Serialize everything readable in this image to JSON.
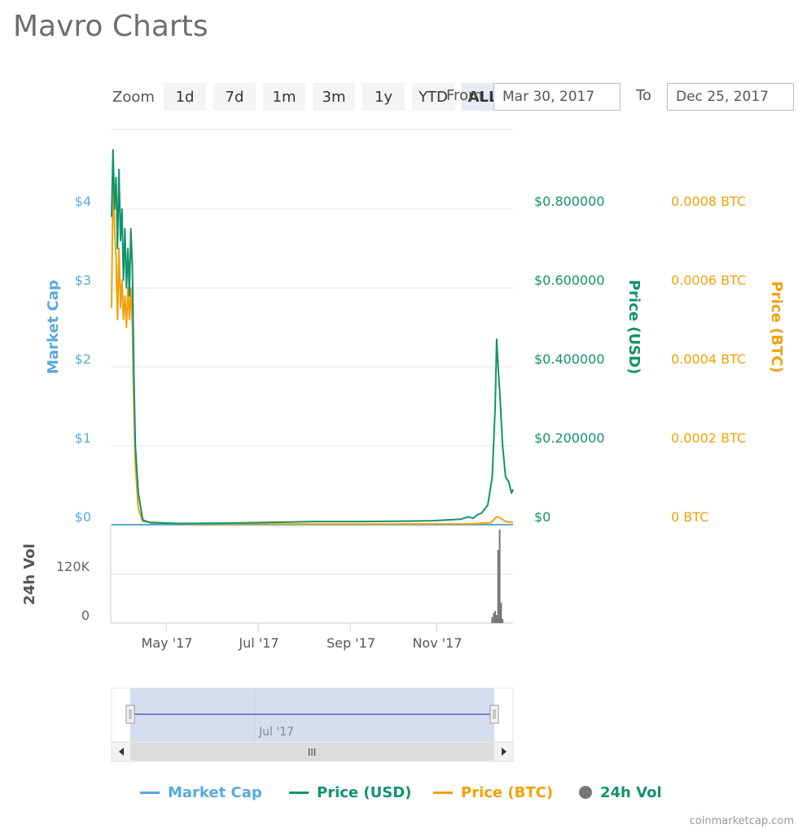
{
  "page": {
    "title": "Mavro Charts",
    "credit": "coinmarketcap.com"
  },
  "zoom": {
    "label": "Zoom",
    "buttons": [
      "1d",
      "7d",
      "1m",
      "3m",
      "1y",
      "YTD",
      "ALL"
    ],
    "active": "ALL"
  },
  "range": {
    "from_label": "From",
    "from_value": "Mar 30, 2017",
    "to_label": "To",
    "to_value": "Dec 25, 2017"
  },
  "colors": {
    "market_cap": "#5aaad8",
    "price_usd": "#12936b",
    "price_btc": "#f0a10a",
    "volume": "#777777",
    "grid": "#e6e6e6",
    "navigator_mask": "#c8d2ea"
  },
  "chart_data": {
    "type": "line",
    "x_range": [
      "2017-03-30",
      "2017-12-25"
    ],
    "x_ticks": [
      "May '17",
      "Jul '17",
      "Sep '17",
      "Nov '17"
    ],
    "y_axes": {
      "market_cap": {
        "label": "Market Cap",
        "ticks": [
          "$0",
          "$1",
          "$2",
          "$3",
          "$4"
        ],
        "range": [
          0,
          4
        ]
      },
      "price_usd": {
        "label": "Price (USD)",
        "ticks": [
          "$0",
          "$0.200000",
          "$0.400000",
          "$0.600000",
          "$0.800000"
        ],
        "range": [
          0,
          0.8
        ]
      },
      "price_btc": {
        "label": "Price (BTC)",
        "ticks": [
          "0 BTC",
          "0.0002 BTC",
          "0.0004 BTC",
          "0.0006 BTC",
          "0.0008 BTC"
        ],
        "range": [
          0,
          0.0008
        ]
      },
      "volume": {
        "label": "24h Vol",
        "ticks": [
          "0",
          "120K"
        ],
        "range": [
          0,
          240000
        ]
      }
    },
    "series": [
      {
        "name": "Market Cap",
        "key": "market_cap",
        "points": [
          [
            "2017-03-30",
            0
          ],
          [
            "2017-12-25",
            0
          ]
        ]
      },
      {
        "name": "Price (USD)",
        "key": "price_usd",
        "points": [
          [
            "2017-03-30",
            0.78
          ],
          [
            "2017-03-31",
            0.95
          ],
          [
            "2017-04-01",
            0.8
          ],
          [
            "2017-04-02",
            0.88
          ],
          [
            "2017-04-03",
            0.7
          ],
          [
            "2017-04-04",
            0.9
          ],
          [
            "2017-04-05",
            0.72
          ],
          [
            "2017-04-06",
            0.8
          ],
          [
            "2017-04-07",
            0.62
          ],
          [
            "2017-04-08",
            0.75
          ],
          [
            "2017-04-09",
            0.6
          ],
          [
            "2017-04-10",
            0.7
          ],
          [
            "2017-04-11",
            0.58
          ],
          [
            "2017-04-12",
            0.75
          ],
          [
            "2017-04-13",
            0.65
          ],
          [
            "2017-04-14",
            0.38
          ],
          [
            "2017-04-15",
            0.2
          ],
          [
            "2017-04-17",
            0.08
          ],
          [
            "2017-04-20",
            0.012
          ],
          [
            "2017-04-25",
            0.005
          ],
          [
            "2017-05-15",
            0.003
          ],
          [
            "2017-06-15",
            0.004
          ],
          [
            "2017-07-15",
            0.006
          ],
          [
            "2017-08-15",
            0.008
          ],
          [
            "2017-09-15",
            0.008
          ],
          [
            "2017-10-15",
            0.009
          ],
          [
            "2017-11-01",
            0.01
          ],
          [
            "2017-11-20",
            0.014
          ],
          [
            "2017-11-25",
            0.02
          ],
          [
            "2017-11-28",
            0.016
          ],
          [
            "2017-12-01",
            0.025
          ],
          [
            "2017-12-04",
            0.03
          ],
          [
            "2017-12-08",
            0.05
          ],
          [
            "2017-12-11",
            0.12
          ],
          [
            "2017-12-13",
            0.3
          ],
          [
            "2017-12-14",
            0.47
          ],
          [
            "2017-12-15",
            0.4
          ],
          [
            "2017-12-16",
            0.34
          ],
          [
            "2017-12-18",
            0.2
          ],
          [
            "2017-12-20",
            0.12
          ],
          [
            "2017-12-22",
            0.11
          ],
          [
            "2017-12-24",
            0.08
          ],
          [
            "2017-12-25",
            0.09
          ]
        ]
      },
      {
        "name": "Price (BTC)",
        "key": "price_btc",
        "points": [
          [
            "2017-03-30",
            0.00055
          ],
          [
            "2017-03-31",
            0.00088
          ],
          [
            "2017-04-01",
            0.00075
          ],
          [
            "2017-04-02",
            0.00068
          ],
          [
            "2017-04-03",
            0.00052
          ],
          [
            "2017-04-04",
            0.0007
          ],
          [
            "2017-04-05",
            0.00055
          ],
          [
            "2017-04-06",
            0.00062
          ],
          [
            "2017-04-07",
            0.00052
          ],
          [
            "2017-04-08",
            0.00058
          ],
          [
            "2017-04-09",
            0.0005
          ],
          [
            "2017-04-10",
            0.0006
          ],
          [
            "2017-04-11",
            0.00052
          ],
          [
            "2017-04-12",
            0.0006
          ],
          [
            "2017-04-13",
            0.0005
          ],
          [
            "2017-04-14",
            0.0003
          ],
          [
            "2017-04-15",
            0.00015
          ],
          [
            "2017-04-17",
            4e-05
          ],
          [
            "2017-04-20",
            8e-06
          ],
          [
            "2017-05-15",
            2e-06
          ],
          [
            "2017-09-15",
            1.5e-06
          ],
          [
            "2017-11-25",
            2e-06
          ],
          [
            "2017-12-10",
            5e-06
          ],
          [
            "2017-12-14",
            2e-05
          ],
          [
            "2017-12-16",
            1.8e-05
          ],
          [
            "2017-12-20",
            8e-06
          ],
          [
            "2017-12-25",
            6e-06
          ]
        ]
      },
      {
        "name": "24h Vol",
        "key": "volume",
        "bars": [
          [
            "2017-12-11",
            15000
          ],
          [
            "2017-12-12",
            25000
          ],
          [
            "2017-12-13",
            30000
          ],
          [
            "2017-12-14",
            20000
          ],
          [
            "2017-12-15",
            180000
          ],
          [
            "2017-12-16",
            230000
          ],
          [
            "2017-12-17",
            50000
          ],
          [
            "2017-12-18",
            10000
          ]
        ]
      }
    ],
    "navigator": {
      "tick": "Jul '17",
      "scrollbar_grip": "III",
      "selection": [
        "2017-03-30",
        "2017-12-25"
      ]
    }
  },
  "legend": [
    {
      "name": "Market Cap",
      "symbol": "line",
      "color": "#5aaad8"
    },
    {
      "name": "Price (USD)",
      "symbol": "line",
      "color": "#12936b"
    },
    {
      "name": "Price (BTC)",
      "symbol": "line",
      "color": "#f0a10a"
    },
    {
      "name": "24h Vol",
      "symbol": "dot",
      "color": "#777777"
    }
  ]
}
